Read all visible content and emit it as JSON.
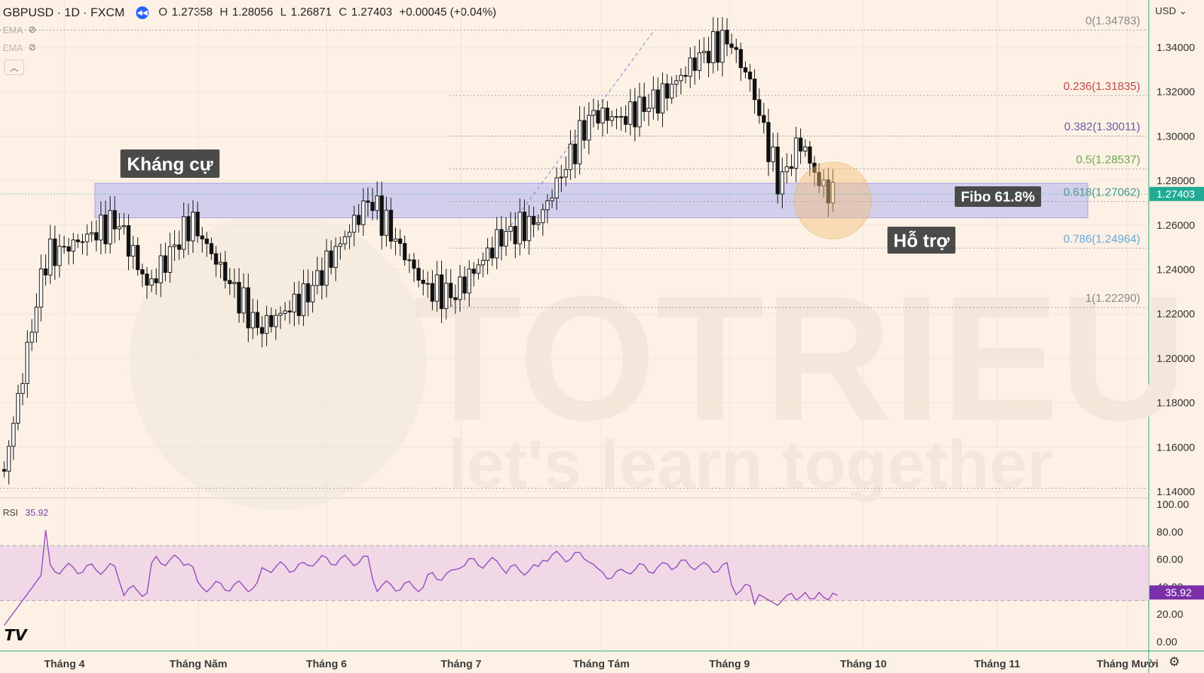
{
  "header": {
    "symbol": "GBPUSD · 1D · FXCM",
    "o_label": "O",
    "o": "1.27358",
    "h_label": "H",
    "h": "1.28056",
    "l_label": "L",
    "l": "1.26871",
    "c_label": "C",
    "c": "1.27403",
    "change": "+0.00045 (+0.04%)"
  },
  "indicators": [
    "EMA",
    "EMA"
  ],
  "rsi": {
    "label": "RSI",
    "value": "35.92"
  },
  "currency": "USD",
  "colors": {
    "background": "#fcf1e4",
    "zone": "#c5c3ee",
    "rsi_band": "#efd3e6",
    "rsi_line": "#9a4fc0",
    "price_tag": "#22ab94",
    "circle": "#f4c07c"
  },
  "annotations": {
    "resistance": "Kháng cự",
    "fibo": "Fibo 61.8%",
    "support": "Hỗ trợ"
  },
  "watermark": {
    "brand": "TOTRIEU",
    "tagline": "let's learn together"
  },
  "chart_data": {
    "type": "candlestick",
    "price_axis": {
      "ticks": [
        "1.34000",
        "1.32000",
        "1.30000",
        "1.28000",
        "1.26000",
        "1.24000",
        "1.22000",
        "1.20000",
        "1.18000",
        "1.16000",
        "1.14000"
      ],
      "ylim": [
        1.1365,
        1.3565
      ],
      "last_price": "1.27403"
    },
    "time_axis": {
      "ticks": [
        "Tháng 4",
        "Tháng Năm",
        "Tháng 6",
        "Tháng 7",
        "Tháng Tám",
        "Tháng 9",
        "Tháng 10",
        "Tháng 11",
        "Tháng Mười"
      ]
    },
    "fibonacci": [
      {
        "ratio": "0",
        "price": "1.34783",
        "color": "#8a8a8a"
      },
      {
        "ratio": "0.236",
        "price": "1.31835",
        "color": "#c24848"
      },
      {
        "ratio": "0.382",
        "price": "1.30011",
        "color": "#6c5aa8"
      },
      {
        "ratio": "0.5",
        "price": "1.28537",
        "color": "#71a84e"
      },
      {
        "ratio": "0.618",
        "price": "1.27062",
        "color": "#4e9a8a"
      },
      {
        "ratio": "0.786",
        "price": "1.24964",
        "color": "#6aa8d8"
      },
      {
        "ratio": "1",
        "price": "1.22290",
        "color": "#8a8a8a"
      }
    ],
    "zone": {
      "top": 1.2789,
      "bottom": 1.2633
    },
    "key_points": [
      {
        "date": "Tháng 4 start",
        "close": 1.15
      },
      {
        "date": "Tháng 4",
        "close": 1.245
      },
      {
        "date": "Tháng Năm",
        "close": 1.26
      },
      {
        "date": "early Tháng 6",
        "close": 1.21
      },
      {
        "date": "mid Tháng 6",
        "close": 1.27
      },
      {
        "date": "Tháng 7",
        "close": 1.225
      },
      {
        "date": "late Tháng 7",
        "close": 1.265
      },
      {
        "date": "Tháng Tám",
        "close": 1.315
      },
      {
        "date": "Tháng 9",
        "close": 1.344
      },
      {
        "date": "late Tháng 9",
        "close": 1.278
      },
      {
        "date": "last",
        "close": 1.27403
      }
    ],
    "rsi": {
      "ticks": [
        "100.00",
        "80.00",
        "60.00",
        "40.00",
        "20.00",
        "0.00"
      ],
      "ylim": [
        0,
        100
      ],
      "overbought": 70,
      "oversold": 30,
      "last": "35.92"
    }
  }
}
